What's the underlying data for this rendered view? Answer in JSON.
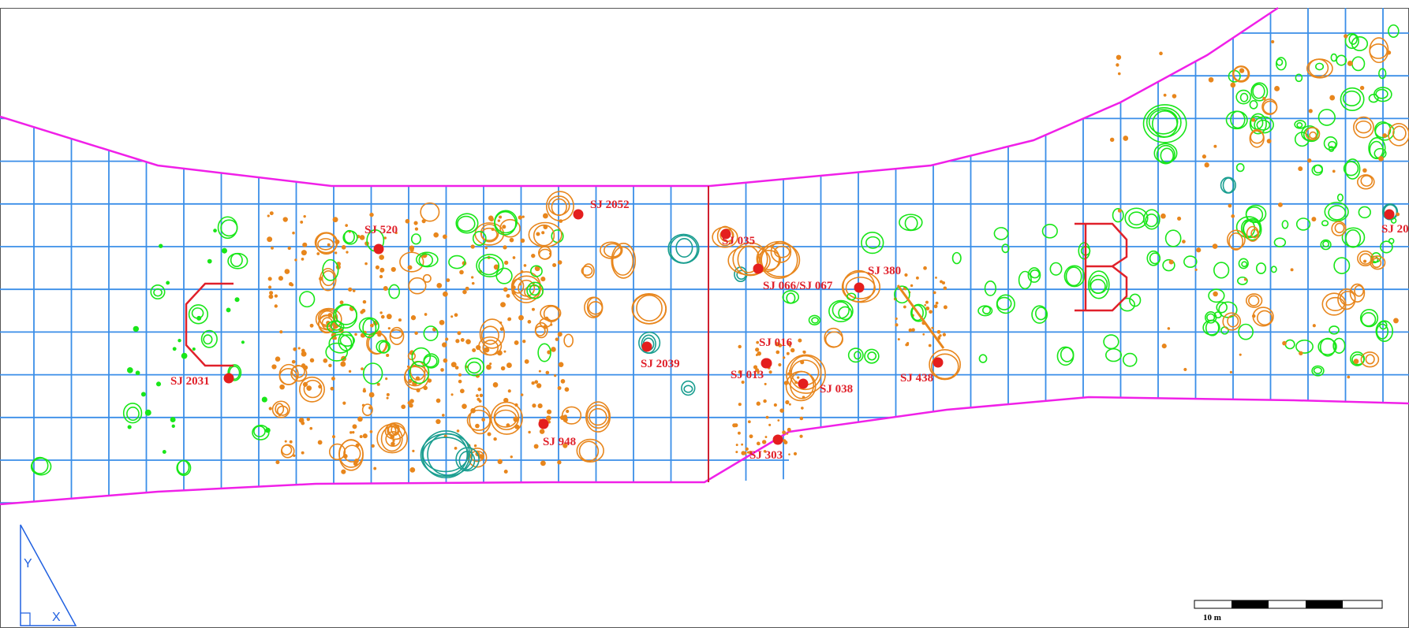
{
  "colors": {
    "grid": "#3a8ee8",
    "boundary": "#f020e8",
    "divider": "#d02030",
    "zone_letter": "#e0202a",
    "feature_orange": "#e8861c",
    "feature_green": "#19e619",
    "feature_teal": "#1a9e90",
    "sample_point": "#e41e1e",
    "label": "#e0202a",
    "axis_icon": "#2060e0"
  },
  "zone_letters": [
    "C",
    "B"
  ],
  "samples": [
    {
      "id": "sj520",
      "label": "SJ 520"
    },
    {
      "id": "sj2052",
      "label": "SJ 2052"
    },
    {
      "id": "sj035",
      "label": "SJ 035"
    },
    {
      "id": "sj066",
      "label": "SJ 066/SJ 067"
    },
    {
      "id": "sj380",
      "label": "SJ 380"
    },
    {
      "id": "sj016",
      "label": "SJ 016"
    },
    {
      "id": "sj013",
      "label": "SJ 013"
    },
    {
      "id": "sj038",
      "label": "SJ 038"
    },
    {
      "id": "sj438",
      "label": "SJ 438"
    },
    {
      "id": "sj2039",
      "label": "SJ 2039"
    },
    {
      "id": "sj2031",
      "label": "SJ 2031"
    },
    {
      "id": "sj948",
      "label": "SJ 948"
    },
    {
      "id": "sj303",
      "label": "SJ 303"
    },
    {
      "id": "sj20",
      "label": "SJ 20"
    }
  ],
  "axis_icon": {
    "y_label": "Y",
    "x_label": "X"
  },
  "scale_bar": {
    "label": "10 m"
  }
}
